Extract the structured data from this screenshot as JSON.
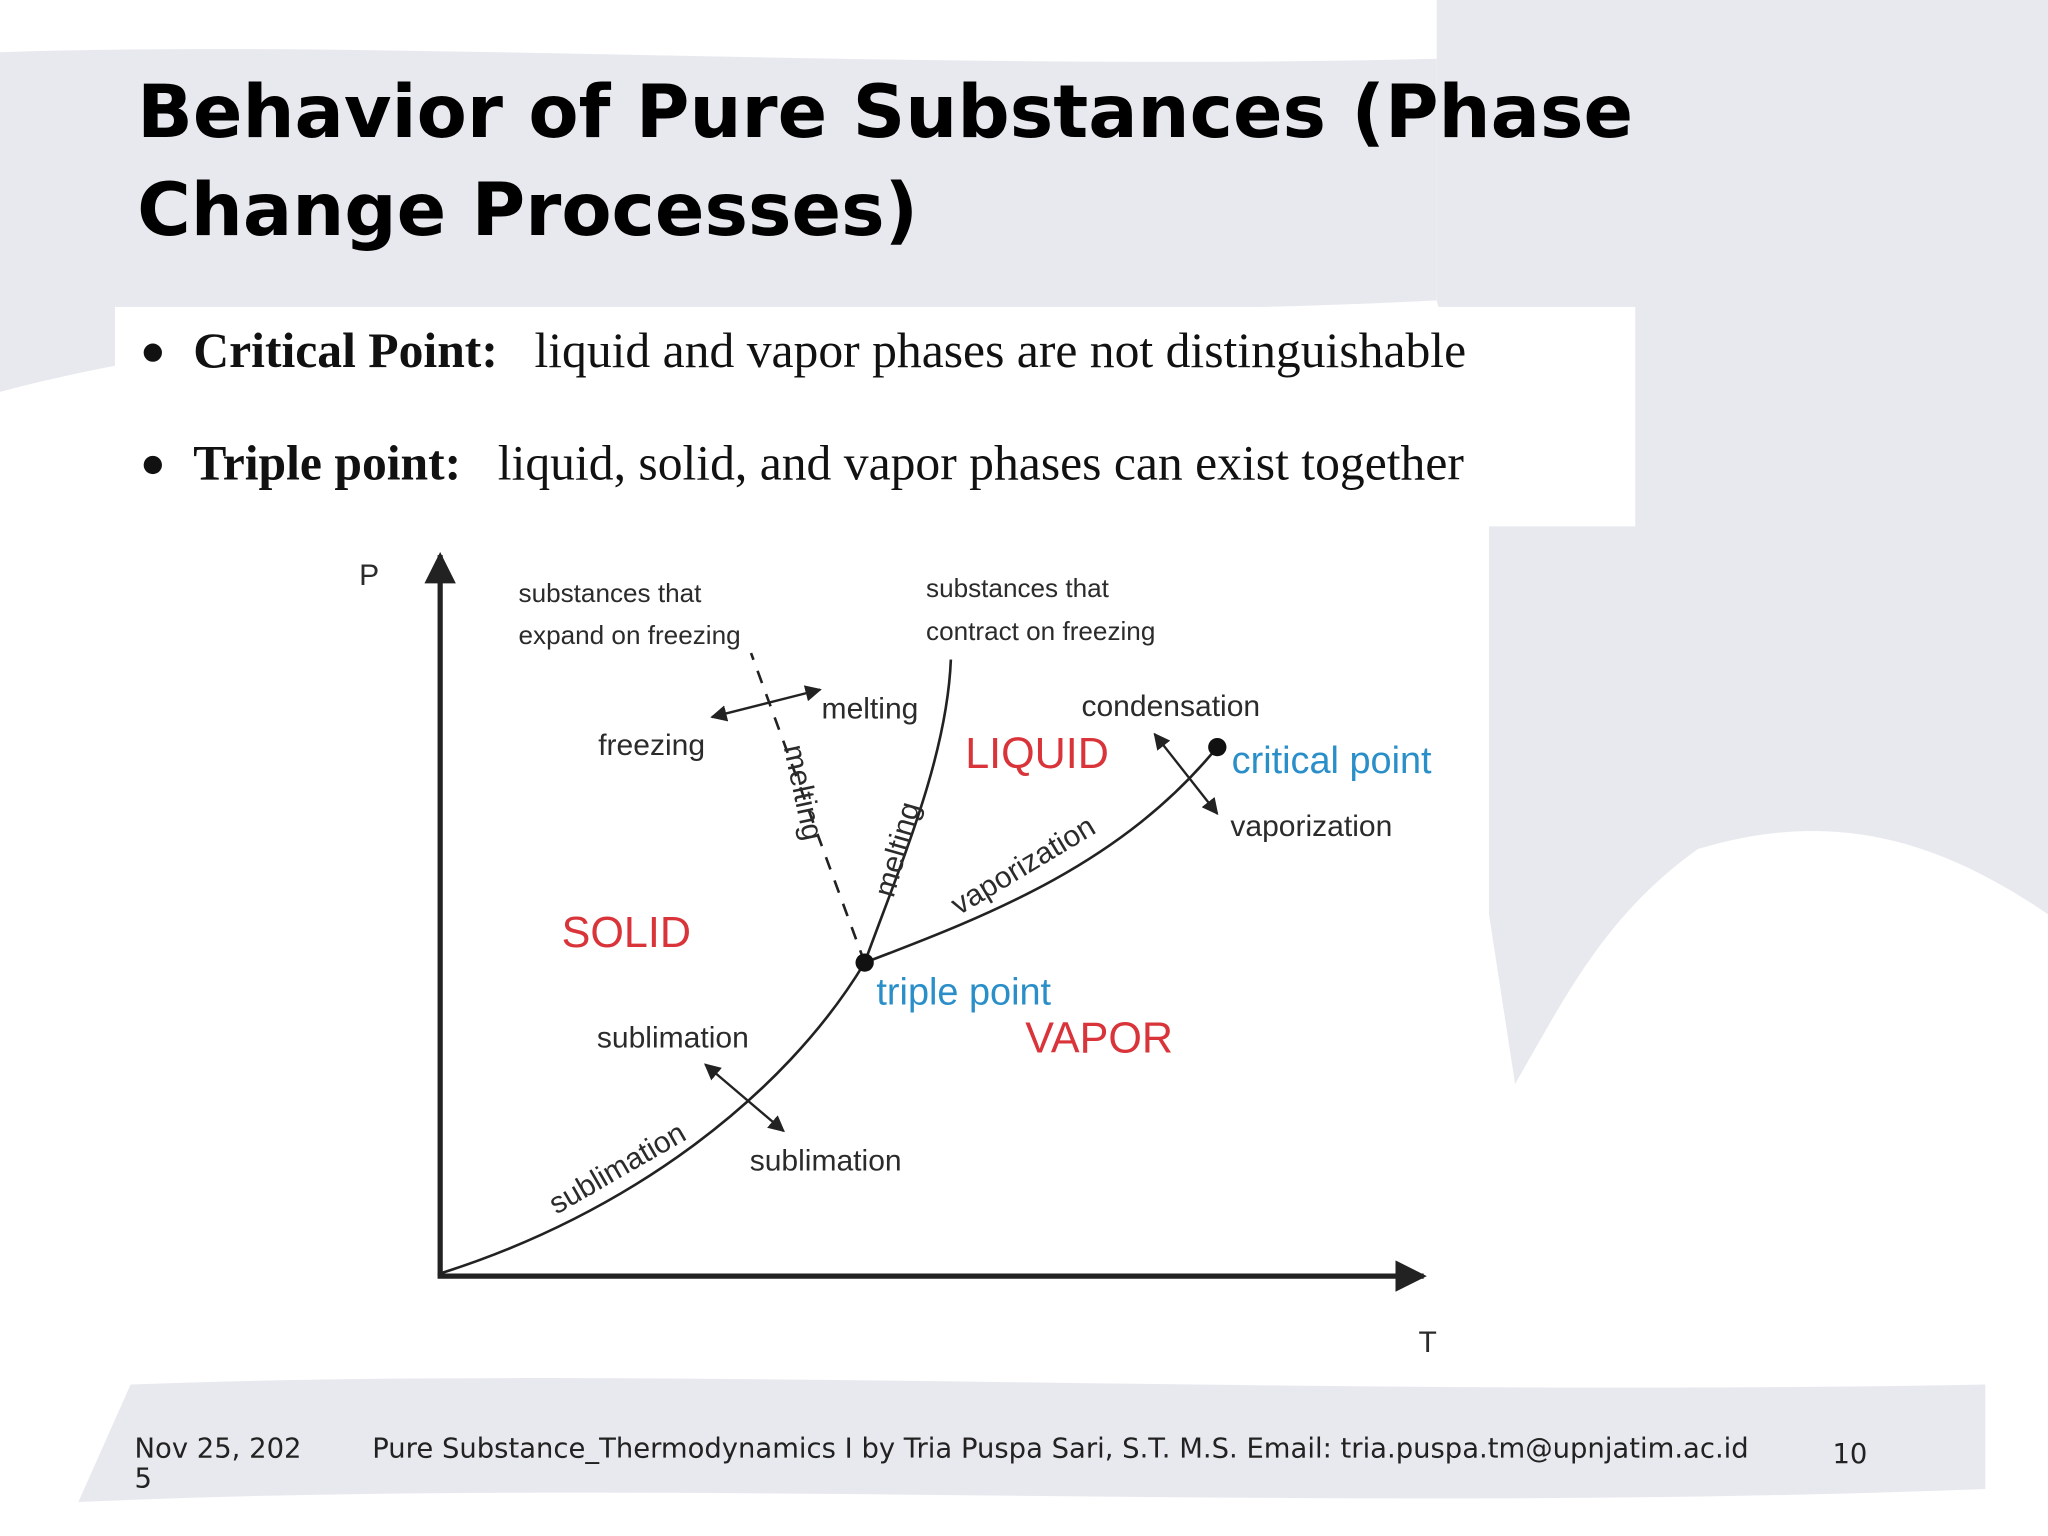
{
  "header": {
    "title_lines": [
      "Behavior of Pure Substances (Phase",
      "Change Processes)"
    ]
  },
  "bullets": [
    {
      "term": "Critical Point:",
      "text": "liquid and vapor phases are not distinguishable"
    },
    {
      "term": "Triple point:",
      "text": "liquid, solid, and vapor phases can exist together"
    }
  ],
  "diagram": {
    "y_axis": "P",
    "x_axis": "T",
    "expand_note": [
      "substances that",
      "expand on freezing"
    ],
    "contract_note": [
      "substances that",
      "contract on freezing"
    ],
    "regions": {
      "solid": "SOLID",
      "liquid": "LIQUID",
      "vapor": "VAPOR"
    },
    "points": {
      "critical": "critical point",
      "triple": "triple point"
    },
    "labels": {
      "freezing": "freezing",
      "melting_top": "melting",
      "melting_dashed": "melting",
      "melting_curve": "melting",
      "condensation": "condensation",
      "vaporization_right": "vaporization",
      "vaporization_curve": "vaporization",
      "sublimation_left": "sublimation",
      "sublimation_below": "sublimation",
      "sublimation_curve": "sublimation"
    }
  },
  "footer": {
    "date": "Nov 25, 2025",
    "text": "Pure Substance_Thermodynamics I by Tria Puspa Sari, S.T. M.S.  Email: tria.puspa.tm@upnjatim.ac.id",
    "page": "10"
  }
}
